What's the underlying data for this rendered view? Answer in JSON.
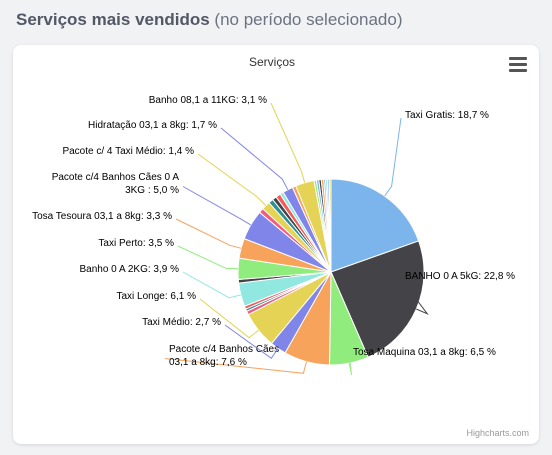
{
  "page": {
    "heading_bold": "Serviços mais vendidos",
    "heading_rest": " (no período selecionado)"
  },
  "chart_menu_icon": "hamburger-menu-icon",
  "credits": "Highcharts.com",
  "chart_data": {
    "type": "pie",
    "title": "Serviços",
    "slices": [
      {
        "name": "Taxi Gratis",
        "value": 18.7,
        "label": "Taxi Gratis: 18,7 %",
        "color": "#7cb5ec"
      },
      {
        "name": "BANHO 0 A 5kG",
        "value": 22.8,
        "label": "BANHO 0 A 5kG: 22,8 %",
        "color": "#434348"
      },
      {
        "name": "Tosa Maquina 03,1 a 8kg",
        "value": 6.5,
        "label": "Tosa Maquina 03,1 a 8kg: 6,5 %",
        "color": "#90ed7d"
      },
      {
        "name": "Pacote c/4 Banhos Cães 03,1 a 8kg",
        "value": 7.6,
        "label": "Pacote c/4 Banhos Cães\n03,1 a 8kg: 7,6 %",
        "color": "#f7a35c"
      },
      {
        "name": "Taxi Médio",
        "value": 2.7,
        "label": "Taxi Médio: 2,7 %",
        "color": "#8085e9"
      },
      {
        "name": "Taxi Longe",
        "value": 6.1,
        "label": "Taxi Longe: 6,1 %",
        "color": "#e4d354"
      },
      {
        "name": "",
        "value": 0.6,
        "label": "",
        "color": "#f15c80"
      },
      {
        "name": "",
        "value": 0.4,
        "label": "",
        "color": "#2b908f"
      },
      {
        "name": "",
        "value": 0.5,
        "label": "",
        "color": "#f45b5b"
      },
      {
        "name": "Banho 0 A 2KG",
        "value": 3.9,
        "label": "Banho 0 A 2KG: 3,9 %",
        "color": "#91e8e1"
      },
      {
        "name": "",
        "value": 0.6,
        "label": "",
        "color": "#434348"
      },
      {
        "name": "Taxi Perto",
        "value": 3.5,
        "label": "Taxi Perto: 3,5 %",
        "color": "#90ed7d"
      },
      {
        "name": "Tosa Tesoura 03,1 a 8kg",
        "value": 3.3,
        "label": "Tosa Tesoura 03,1 a 8kg: 3,3 %",
        "color": "#f7a35c"
      },
      {
        "name": "Pacote c/4 Banhos Cães 0 A 3KG",
        "value": 5.0,
        "label": "Pacote c/4 Banhos Cães 0 A\n3KG : 5,0 %",
        "color": "#8085e9"
      },
      {
        "name": "",
        "value": 0.8,
        "label": "",
        "color": "#f15c80"
      },
      {
        "name": "Pacote c/ 4 Taxi Médio",
        "value": 1.4,
        "label": "Pacote c/ 4 Taxi Médio: 1,4 %",
        "color": "#e4d354"
      },
      {
        "name": "",
        "value": 0.8,
        "label": "",
        "color": "#2b908f"
      },
      {
        "name": "",
        "value": 0.7,
        "label": "",
        "color": "#434348"
      },
      {
        "name": "",
        "value": 0.8,
        "label": "",
        "color": "#f45b5b"
      },
      {
        "name": "",
        "value": 0.6,
        "label": "",
        "color": "#91e8e1"
      },
      {
        "name": "Hidratação 03,1 a 8kg",
        "value": 1.7,
        "label": "Hidratação 03,1 a 8kg: 1,7 %",
        "color": "#8085e9"
      },
      {
        "name": "",
        "value": 0.6,
        "label": "",
        "color": "#f7a35c"
      },
      {
        "name": "Banho 08,1 a 11KG",
        "value": 3.1,
        "label": "Banho 08,1 a 11KG: 3,1 %",
        "color": "#e4d354"
      },
      {
        "name": "",
        "value": 0.4,
        "label": "",
        "color": "#90ed7d"
      },
      {
        "name": "",
        "value": 0.4,
        "label": "",
        "color": "#7cb5ec"
      },
      {
        "name": "",
        "value": 0.4,
        "label": "",
        "color": "#434348"
      },
      {
        "name": "",
        "value": 0.4,
        "label": "",
        "color": "#f7a35c"
      },
      {
        "name": "",
        "value": 0.3,
        "label": "",
        "color": "#7cb5ec"
      },
      {
        "name": "",
        "value": 0.3,
        "label": "",
        "color": "#91e8e1"
      },
      {
        "name": "",
        "value": 0.3,
        "label": "",
        "color": "#7cb5ec"
      },
      {
        "name": "",
        "value": 0.3,
        "label": "",
        "color": "#e4d354"
      }
    ]
  }
}
